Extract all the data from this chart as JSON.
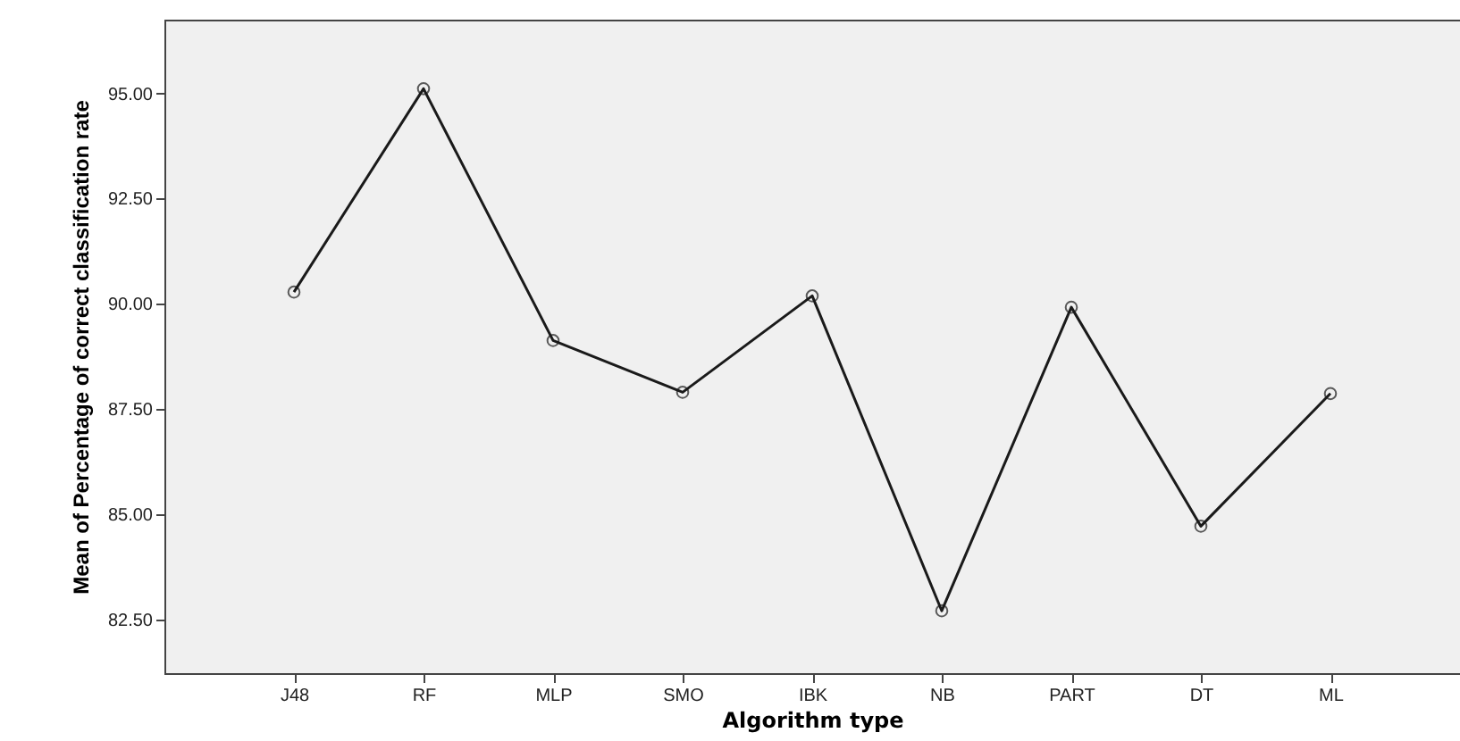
{
  "chart_data": {
    "type": "line",
    "xlabel": "Algorithm type",
    "ylabel": "Mean of Percentage of correct classification rate",
    "categories": [
      "J48",
      "RF",
      "MLP",
      "SMO",
      "IBK",
      "NB",
      "PART",
      "DT",
      "ML"
    ],
    "series": [
      {
        "color": "#1a1a1a",
        "values": [
          90.28,
          95.11,
          89.13,
          87.9,
          90.19,
          82.71,
          89.92,
          84.72,
          87.87
        ]
      }
    ],
    "ylim": [
      81.23,
      96.75
    ],
    "yticks": [
      {
        "value": 82.5,
        "label": "82.50"
      },
      {
        "value": 85,
        "label": "85.00"
      },
      {
        "value": 87.5,
        "label": "87.50"
      },
      {
        "value": 90,
        "label": "90.00"
      },
      {
        "value": 92.5,
        "label": "92.50"
      },
      {
        "value": 95,
        "label": "95.00"
      }
    ],
    "grid": false,
    "marker": "circle",
    "line_style": "solid"
  }
}
